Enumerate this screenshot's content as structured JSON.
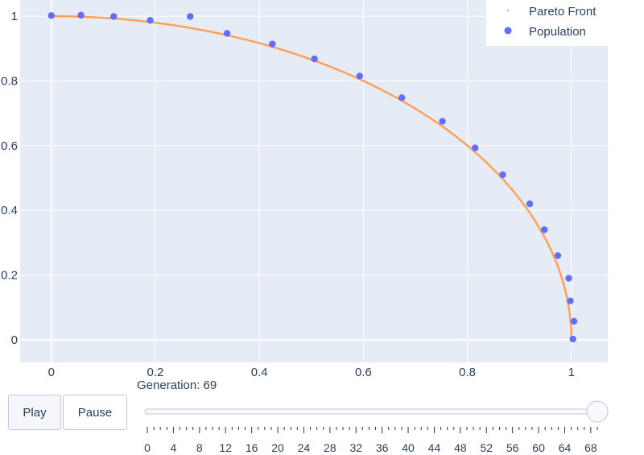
{
  "chart_data": {
    "type": "scatter",
    "title": "",
    "xlabel": "",
    "ylabel": "",
    "xlim": [
      -0.06,
      1.07
    ],
    "ylim": [
      -0.07,
      1.05
    ],
    "grid": true,
    "xticks": [
      "0",
      "0.2",
      "0.4",
      "0.6",
      "0.8",
      "1"
    ],
    "xtick_values": [
      0,
      0.2,
      0.4,
      0.6,
      0.8,
      1
    ],
    "yticks": [
      "0",
      "0.2",
      "0.4",
      "0.6",
      "0.8",
      "1"
    ],
    "ytick_values": [
      0,
      0.2,
      0.4,
      0.6,
      0.8,
      1
    ],
    "legend_position": "top-right",
    "series": [
      {
        "name": "Pareto Front",
        "kind": "line",
        "color": "#ffa15a",
        "curve": "quarter-circle",
        "x": [
          0,
          0.1,
          0.2,
          0.3,
          0.4,
          0.5,
          0.6,
          0.7,
          0.8,
          0.866,
          0.9,
          0.95,
          0.98,
          1
        ],
        "y": [
          1,
          0.995,
          0.98,
          0.954,
          0.917,
          0.866,
          0.8,
          0.714,
          0.6,
          0.5,
          0.436,
          0.312,
          0.199,
          0
        ]
      },
      {
        "name": "Population",
        "kind": "markers",
        "color": "#636efa",
        "x": [
          0,
          0.057,
          0.12,
          0.19,
          0.267,
          0.338,
          0.425,
          0.506,
          0.593,
          0.674,
          0.752,
          0.815,
          0.868,
          0.92,
          0.948,
          0.974,
          0.995,
          0.998,
          1.005,
          1.003
        ],
        "y": [
          1.002,
          1.003,
          0.999,
          0.987,
          0.999,
          0.947,
          0.914,
          0.868,
          0.815,
          0.748,
          0.675,
          0.593,
          0.51,
          0.42,
          0.34,
          0.26,
          0.19,
          0.12,
          0.057,
          0.002
        ]
      }
    ]
  },
  "controls": {
    "play_label": "Play",
    "pause_label": "Pause",
    "generation_label": "Generation: 69",
    "slider": {
      "min": 0,
      "max": 69,
      "value": 69,
      "tick_labels": [
        "0",
        "4",
        "8",
        "12",
        "16",
        "20",
        "24",
        "28",
        "32",
        "36",
        "40",
        "44",
        "48",
        "52",
        "56",
        "60",
        "64",
        "68"
      ]
    }
  },
  "colors": {
    "plot_bg": "#e5ecf6",
    "grid": "#ffffff",
    "text": "#2a3f5f"
  }
}
